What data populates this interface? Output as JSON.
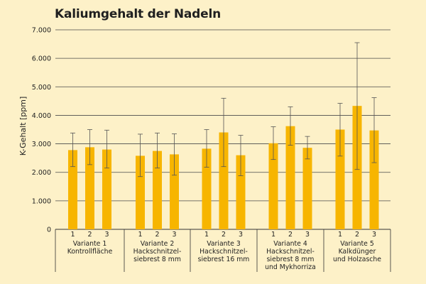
{
  "chart_data": {
    "type": "bar",
    "title": "Kaliumgehalt der Nadeln",
    "ylabel": "K-Gehalt [ppm]",
    "xlabel": "",
    "ylim": [
      0,
      7000
    ],
    "yticks": [
      0,
      1000,
      2000,
      3000,
      4000,
      5000,
      6000,
      7000
    ],
    "ytick_labels": [
      "0",
      "1.000",
      "2.000",
      "3.000",
      "4.000",
      "5.000",
      "6.000",
      "7.000"
    ],
    "grid": true,
    "bar_color": "#f7b500",
    "groups": [
      {
        "label_lines": [
          "Variante 1",
          "Kontrollfläche"
        ],
        "bars": [
          {
            "label": "1",
            "value": 2780,
            "err_low": 2200,
            "err_high": 3380
          },
          {
            "label": "2",
            "value": 2880,
            "err_low": 2270,
            "err_high": 3500
          },
          {
            "label": "3",
            "value": 2800,
            "err_low": 2150,
            "err_high": 3480
          }
        ]
      },
      {
        "label_lines": [
          "Variante 2",
          "Hackschnitzel-",
          "siebrest 8 mm"
        ],
        "bars": [
          {
            "label": "1",
            "value": 2580,
            "err_low": 1850,
            "err_high": 3340
          },
          {
            "label": "2",
            "value": 2750,
            "err_low": 2150,
            "err_high": 3380
          },
          {
            "label": "3",
            "value": 2630,
            "err_low": 1900,
            "err_high": 3350
          }
        ]
      },
      {
        "label_lines": [
          "Variante 3",
          "Hackschnitzel-",
          "siebrest 16 mm"
        ],
        "bars": [
          {
            "label": "1",
            "value": 2830,
            "err_low": 2180,
            "err_high": 3500
          },
          {
            "label": "2",
            "value": 3400,
            "err_low": 2200,
            "err_high": 4600
          },
          {
            "label": "3",
            "value": 2600,
            "err_low": 1880,
            "err_high": 3300
          }
        ]
      },
      {
        "label_lines": [
          "Variante 4",
          "Hackschnitzel-",
          "siebrest 8 mm",
          "und Mykhorriza"
        ],
        "bars": [
          {
            "label": "1",
            "value": 3020,
            "err_low": 2450,
            "err_high": 3600
          },
          {
            "label": "2",
            "value": 3620,
            "err_low": 2950,
            "err_high": 4300
          },
          {
            "label": "3",
            "value": 2860,
            "err_low": 2470,
            "err_high": 3260
          }
        ]
      },
      {
        "label_lines": [
          "Variante 5",
          "Kalkdünger",
          "und Holzasche"
        ],
        "bars": [
          {
            "label": "1",
            "value": 3500,
            "err_low": 2570,
            "err_high": 4420
          },
          {
            "label": "2",
            "value": 4330,
            "err_low": 2100,
            "err_high": 6550
          },
          {
            "label": "3",
            "value": 3470,
            "err_low": 2340,
            "err_high": 4620
          }
        ]
      }
    ]
  }
}
